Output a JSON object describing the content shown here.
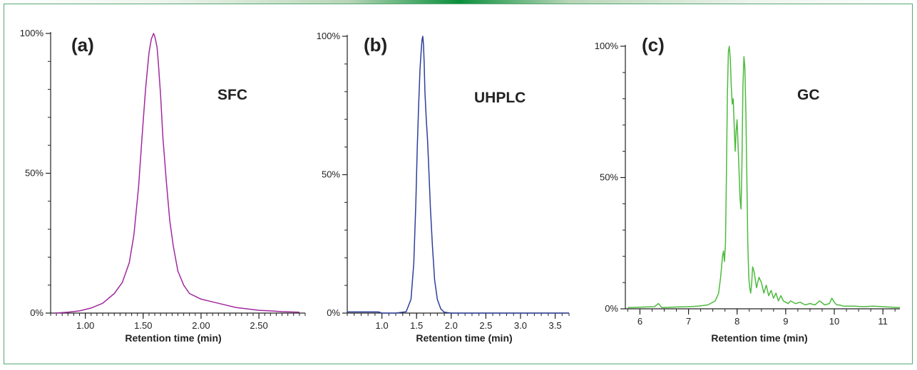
{
  "figure": {
    "colors": {
      "frame": "#58a874",
      "topbar_center": "#0a8f3c"
    }
  },
  "chart_data": [
    {
      "type": "line",
      "panel_label": "(a)",
      "method_label": "SFC",
      "xlabel": "Retention time (min)",
      "ylabel": "",
      "xlim": [
        0.7,
        2.9
      ],
      "ylim": [
        0,
        100
      ],
      "x_ticks": [
        "1.00",
        "1.50",
        "2.00",
        "2.50"
      ],
      "y_ticks": [
        "0%",
        "50%",
        "100%"
      ],
      "color": "#a02a9e",
      "series": [
        {
          "x": [
            0.74,
            0.85,
            0.95,
            1.05,
            1.15,
            1.25,
            1.32,
            1.38,
            1.42,
            1.46,
            1.49,
            1.52,
            1.55,
            1.57,
            1.59,
            1.6,
            1.61,
            1.62,
            1.63,
            1.65,
            1.67,
            1.7,
            1.73,
            1.76,
            1.8,
            1.85,
            1.9,
            1.95,
            2.0,
            2.1,
            2.2,
            2.3,
            2.4,
            2.5,
            2.6,
            2.7,
            2.85
          ],
          "y": [
            0,
            0.3,
            0.8,
            1.8,
            3.5,
            7,
            11,
            18,
            28,
            45,
            63,
            80,
            93,
            98,
            100,
            99,
            97,
            95,
            90,
            78,
            63,
            47,
            33,
            24,
            15,
            10,
            7,
            6,
            5,
            4,
            3,
            2,
            1.5,
            1,
            0.8,
            0.5,
            0.3
          ]
        }
      ]
    },
    {
      "type": "line",
      "panel_label": "(b)",
      "method_label": "UHPLC",
      "xlabel": "Retention time (min)",
      "ylabel": "",
      "xlim": [
        0.5,
        3.7
      ],
      "ylim": [
        0,
        100
      ],
      "x_ticks": [
        "1.0",
        "1.5",
        "2.0",
        "2.5",
        "3.0",
        "3.5"
      ],
      "y_ticks": [
        "0%",
        "50%",
        "100%"
      ],
      "color": "#2e3f9a",
      "series": [
        {
          "x": [
            0.5,
            0.95,
            1.0,
            1.2,
            1.35,
            1.42,
            1.46,
            1.49,
            1.51,
            1.53,
            1.55,
            1.57,
            1.58,
            1.59,
            1.6,
            1.61,
            1.62,
            1.64,
            1.66,
            1.68,
            1.7,
            1.73,
            1.76,
            1.8,
            1.85,
            1.9,
            2.0,
            3.7
          ],
          "y": [
            0.4,
            0.4,
            0,
            0,
            0.5,
            5,
            18,
            40,
            60,
            75,
            88,
            96,
            99,
            100,
            97,
            90,
            80,
            70,
            62,
            50,
            38,
            24,
            12,
            5,
            1.5,
            0.3,
            0,
            0
          ]
        }
      ]
    },
    {
      "type": "line",
      "panel_label": "(c)",
      "method_label": "GC",
      "xlabel": "Retention time (min)",
      "ylabel": "",
      "xlim": [
        5.7,
        11.35
      ],
      "ylim": [
        0,
        100
      ],
      "x_ticks": [
        "6",
        "7",
        "8",
        "9",
        "10",
        "11"
      ],
      "y_ticks": [
        "0%",
        "50%",
        "100%"
      ],
      "color": "#4dbb3e",
      "series": [
        {
          "x": [
            5.75,
            6.0,
            6.3,
            6.38,
            6.45,
            6.8,
            7.0,
            7.2,
            7.4,
            7.55,
            7.62,
            7.66,
            7.7,
            7.72,
            7.74,
            7.76,
            7.78,
            7.8,
            7.82,
            7.84,
            7.86,
            7.88,
            7.9,
            7.92,
            7.94,
            7.96,
            7.98,
            8.0,
            8.02,
            8.04,
            8.06,
            8.08,
            8.1,
            8.12,
            8.14,
            8.16,
            8.18,
            8.2,
            8.22,
            8.24,
            8.26,
            8.28,
            8.3,
            8.32,
            8.35,
            8.4,
            8.45,
            8.5,
            8.55,
            8.6,
            8.65,
            8.7,
            8.75,
            8.8,
            8.85,
            8.9,
            8.95,
            9.0,
            9.05,
            9.1,
            9.2,
            9.3,
            9.4,
            9.5,
            9.6,
            9.7,
            9.8,
            9.9,
            9.95,
            10.0,
            10.05,
            10.1,
            10.2,
            10.4,
            10.6,
            10.8,
            11.0,
            11.2,
            11.35
          ],
          "y": [
            0.5,
            0.6,
            0.8,
            2,
            0.5,
            0.7,
            0.8,
            1,
            1.5,
            3,
            6,
            12,
            20,
            22,
            18,
            25,
            50,
            82,
            98,
            100,
            95,
            85,
            78,
            80,
            70,
            60,
            68,
            72,
            62,
            52,
            42,
            38,
            55,
            85,
            96,
            92,
            75,
            50,
            25,
            12,
            8,
            6,
            10,
            16,
            14,
            8,
            12,
            10,
            6,
            9,
            5,
            7,
            4,
            6,
            3,
            5,
            3,
            2.5,
            2,
            3,
            2,
            2.5,
            1.5,
            2,
            1.5,
            3,
            1.5,
            2,
            4,
            2.5,
            1.5,
            1.5,
            1,
            1,
            0.8,
            1,
            0.8,
            0.6,
            0.5
          ]
        }
      ]
    }
  ]
}
